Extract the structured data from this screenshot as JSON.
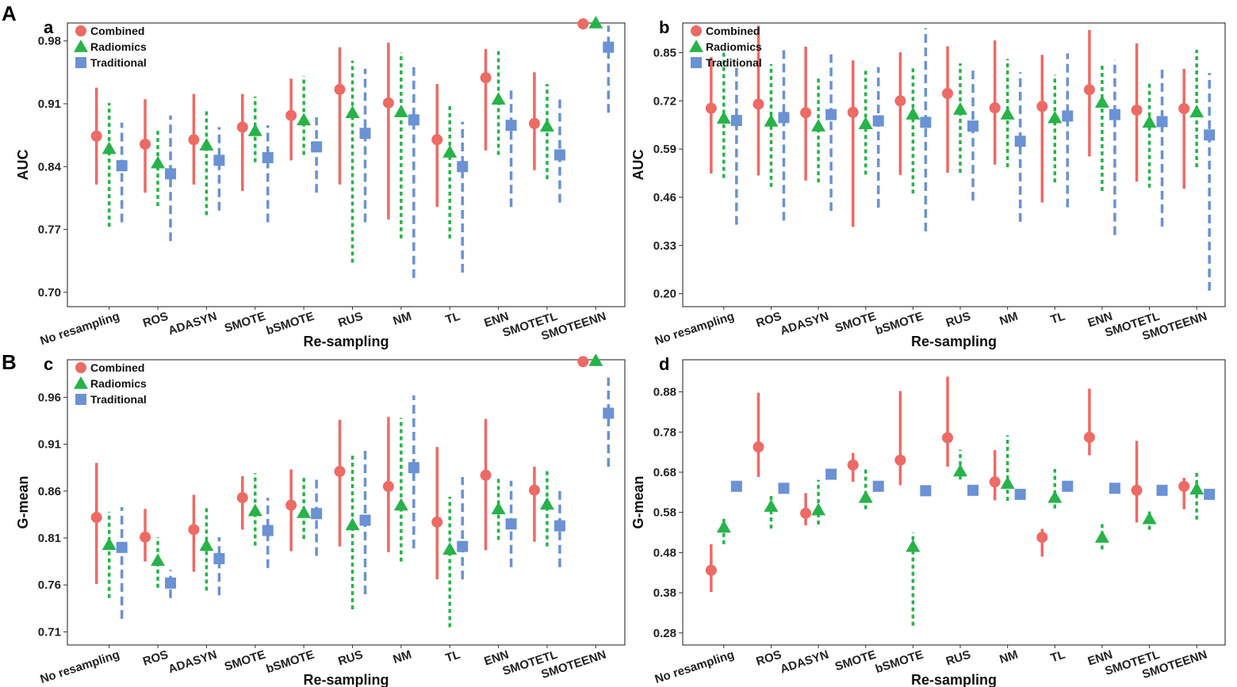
{
  "sections": [
    {
      "label": "A"
    },
    {
      "label": "B"
    }
  ],
  "colors": {
    "combined": "#ee6a64",
    "radiomics": "#27b34a",
    "traditional": "#6a92d4"
  },
  "chart_data": [
    {
      "panel": "a",
      "type": "scatter-errorbar",
      "xlabel": "Re-sampling",
      "ylabel": "AUC",
      "ylim": [
        0.684,
        1.0
      ],
      "yticks": [
        "0.70",
        "0.77",
        "0.84",
        "0.91",
        "0.98"
      ],
      "categories": [
        "No resampling",
        "ROS",
        "ADASYN",
        "SMOTE",
        "bSMOTE",
        "RUS",
        "NM",
        "TL",
        "ENN",
        "SMOTETL",
        "SMOTEENN"
      ],
      "legend": [
        "Combined",
        "Radiomics",
        "Traditional"
      ],
      "series": [
        {
          "name": "Combined",
          "values": [
            0.874,
            0.865,
            0.87,
            0.884,
            0.897,
            0.926,
            0.911,
            0.87,
            0.939,
            0.888,
            0.999
          ],
          "lower": [
            0.82,
            0.811,
            0.82,
            0.813,
            0.847,
            0.82,
            0.781,
            0.795,
            0.858,
            0.836,
            0.999
          ],
          "upper": [
            0.928,
            0.915,
            0.921,
            0.921,
            0.938,
            0.973,
            0.978,
            0.932,
            0.971,
            0.945,
            0.999
          ]
        },
        {
          "name": "Radiomics",
          "values": [
            0.86,
            0.844,
            0.864,
            0.88,
            0.892,
            0.9,
            0.901,
            0.856,
            0.915,
            0.885,
            1.0
          ],
          "lower": [
            0.773,
            0.796,
            0.786,
            0.845,
            0.853,
            0.733,
            0.76,
            0.76,
            0.853,
            0.826,
            1.0
          ],
          "upper": [
            0.911,
            0.883,
            0.902,
            0.918,
            0.941,
            0.958,
            0.967,
            0.908,
            0.969,
            0.932,
            1.0
          ]
        },
        {
          "name": "Traditional",
          "values": [
            0.841,
            0.832,
            0.847,
            0.85,
            0.862,
            0.877,
            0.892,
            0.84,
            0.886,
            0.853,
            0.973
          ],
          "lower": [
            0.778,
            0.757,
            0.791,
            0.778,
            0.811,
            0.778,
            0.716,
            0.722,
            0.795,
            0.8,
            0.9
          ],
          "upper": [
            0.889,
            0.897,
            0.884,
            0.886,
            0.895,
            0.949,
            0.953,
            0.89,
            0.925,
            0.92,
            0.997
          ]
        }
      ]
    },
    {
      "panel": "b",
      "type": "scatter-errorbar",
      "xlabel": "Re-sampling",
      "ylabel": "AUC",
      "ylim": [
        0.165,
        0.93
      ],
      "yticks": [
        "0.20",
        "0.33",
        "0.46",
        "0.59",
        "0.72",
        "0.85"
      ],
      "categories": [
        "No resampling",
        "ROS",
        "ADASYN",
        "SMOTE",
        "bSMOTE",
        "RUS",
        "NM",
        "TL",
        "ENN",
        "SMOTETL",
        "SMOTEENN"
      ],
      "legend": [
        "Combined",
        "Radiomics",
        "Traditional"
      ],
      "series": [
        {
          "name": "Combined",
          "values": [
            0.7,
            0.711,
            0.688,
            0.689,
            0.72,
            0.74,
            0.701,
            0.705,
            0.75,
            0.695,
            0.699
          ],
          "lower": [
            0.524,
            0.519,
            0.505,
            0.38,
            0.52,
            0.526,
            0.548,
            0.446,
            0.57,
            0.502,
            0.483
          ],
          "upper": [
            0.838,
            0.923,
            0.866,
            0.829,
            0.851,
            0.867,
            0.883,
            0.844,
            0.911,
            0.875,
            0.806
          ]
        },
        {
          "name": "Radiomics",
          "values": [
            0.673,
            0.665,
            0.652,
            0.658,
            0.684,
            0.697,
            0.684,
            0.674,
            0.716,
            0.662,
            0.69
          ],
          "lower": [
            0.512,
            0.488,
            0.5,
            0.521,
            0.47,
            0.526,
            0.541,
            0.5,
            0.477,
            0.486,
            0.541
          ],
          "upper": [
            0.852,
            0.819,
            0.782,
            0.806,
            0.815,
            0.821,
            0.833,
            0.79,
            0.823,
            0.772,
            0.858
          ]
        },
        {
          "name": "Traditional",
          "values": [
            0.667,
            0.675,
            0.683,
            0.666,
            0.662,
            0.652,
            0.611,
            0.679,
            0.683,
            0.664,
            0.628
          ],
          "lower": [
            0.386,
            0.397,
            0.423,
            0.432,
            0.368,
            0.451,
            0.394,
            0.433,
            0.358,
            0.381,
            0.208
          ],
          "upper": [
            0.824,
            0.863,
            0.845,
            0.811,
            0.916,
            0.814,
            0.797,
            0.848,
            0.831,
            0.817,
            0.795
          ]
        }
      ]
    },
    {
      "panel": "c",
      "type": "scatter-errorbar",
      "xlabel": "Re-sampling",
      "ylabel": "G-mean",
      "ylim": [
        0.696,
        1.0
      ],
      "yticks": [
        "0.71",
        "0.76",
        "0.81",
        "0.86",
        "0.91",
        "0.96"
      ],
      "categories": [
        "No resampling",
        "ROS",
        "ADASYN",
        "SMOTE",
        "bSMOTE",
        "RUS",
        "NM",
        "TL",
        "ENN",
        "SMOTETL",
        "SMOTEENN"
      ],
      "legend": [
        "Combined",
        "Radiomics",
        "Traditional"
      ],
      "series": [
        {
          "name": "Combined",
          "values": [
            0.832,
            0.811,
            0.819,
            0.853,
            0.845,
            0.881,
            0.865,
            0.827,
            0.877,
            0.861,
            0.998
          ],
          "lower": [
            0.761,
            0.785,
            0.774,
            0.819,
            0.796,
            0.801,
            0.795,
            0.766,
            0.797,
            0.806,
            0.998
          ],
          "upper": [
            0.89,
            0.841,
            0.856,
            0.876,
            0.883,
            0.936,
            0.939,
            0.907,
            0.937,
            0.886,
            0.998
          ]
        },
        {
          "name": "Radiomics",
          "values": [
            0.803,
            0.786,
            0.802,
            0.839,
            0.837,
            0.824,
            0.845,
            0.798,
            0.841,
            0.846,
            0.999
          ],
          "lower": [
            0.746,
            0.757,
            0.754,
            0.802,
            0.809,
            0.734,
            0.785,
            0.715,
            0.808,
            0.801,
            0.999
          ],
          "upper": [
            0.838,
            0.811,
            0.845,
            0.879,
            0.874,
            0.901,
            0.938,
            0.854,
            0.873,
            0.883,
            0.999
          ]
        },
        {
          "name": "Traditional",
          "values": [
            0.8,
            0.762,
            0.788,
            0.818,
            0.836,
            0.829,
            0.885,
            0.801,
            0.825,
            0.823,
            0.943
          ],
          "lower": [
            0.724,
            0.746,
            0.749,
            0.778,
            0.791,
            0.75,
            0.799,
            0.766,
            0.779,
            0.779,
            0.886
          ],
          "upper": [
            0.843,
            0.776,
            0.811,
            0.853,
            0.873,
            0.906,
            0.962,
            0.875,
            0.871,
            0.861,
            0.981
          ]
        }
      ]
    },
    {
      "panel": "d",
      "type": "scatter-errorbar",
      "xlabel": "Re-sampling",
      "ylabel": "G-mean",
      "ylim": [
        0.25,
        0.96
      ],
      "yticks": [
        "0.28",
        "0.38",
        "0.48",
        "0.58",
        "0.68",
        "0.78",
        "0.88"
      ],
      "categories": [
        "No resampling",
        "ROS",
        "ADASYN",
        "SMOTE",
        "bSMOTE",
        "RUS",
        "NM",
        "TL",
        "ENN",
        "SMOTETL",
        "SMOTEENN"
      ],
      "legend": [],
      "series": [
        {
          "name": "Combined",
          "values": [
            0.436,
            0.743,
            0.578,
            0.698,
            0.71,
            0.766,
            0.656,
            0.518,
            0.767,
            0.635,
            0.645
          ],
          "lower": [
            0.382,
            0.668,
            0.548,
            0.656,
            0.648,
            0.694,
            0.61,
            0.47,
            0.722,
            0.555,
            0.588
          ],
          "upper": [
            0.501,
            0.878,
            0.628,
            0.728,
            0.882,
            0.918,
            0.735,
            0.539,
            0.888,
            0.758,
            0.666
          ]
        },
        {
          "name": "Radiomics",
          "values": [
            0.543,
            0.595,
            0.586,
            0.617,
            0.495,
            0.683,
            0.652,
            0.617,
            0.518,
            0.564,
            0.638
          ],
          "lower": [
            0.501,
            0.54,
            0.55,
            0.588,
            0.298,
            0.662,
            0.609,
            0.59,
            0.488,
            0.537,
            0.562
          ],
          "upper": [
            0.565,
            0.629,
            0.661,
            0.689,
            0.53,
            0.736,
            0.772,
            0.688,
            0.558,
            0.586,
            0.68
          ]
        },
        {
          "name": "Traditional",
          "values": [
            0.645,
            0.64,
            0.675,
            0.645,
            0.634,
            0.635,
            0.625,
            0.645,
            0.64,
            0.635,
            0.625
          ]
        }
      ]
    }
  ]
}
